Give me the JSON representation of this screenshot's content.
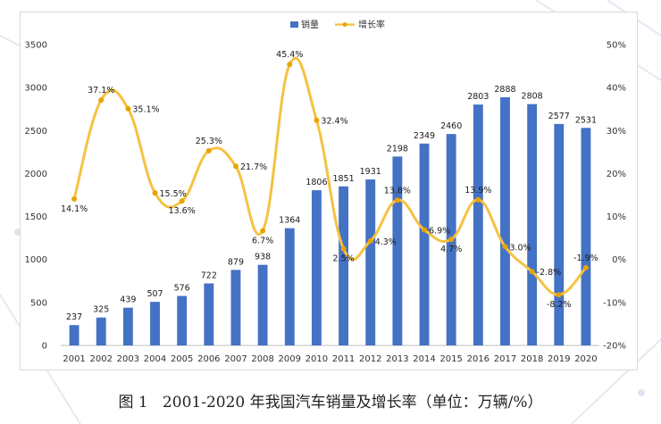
{
  "chart_data": {
    "type": "bar",
    "categories": [
      "2001",
      "2002",
      "2003",
      "2004",
      "2005",
      "2006",
      "2007",
      "2008",
      "2009",
      "2010",
      "2011",
      "2012",
      "2013",
      "2014",
      "2015",
      "2016",
      "2017",
      "2018",
      "2019",
      "2020"
    ],
    "series": [
      {
        "name": "销量",
        "type": "bar",
        "axis": "left",
        "values": [
          237,
          325,
          439,
          507,
          576,
          722,
          879,
          938,
          1364,
          1806,
          1851,
          1931,
          2198,
          2349,
          2460,
          2803,
          2888,
          2808,
          2577,
          2531
        ],
        "labels": [
          "237",
          "325",
          "439",
          "507",
          "576",
          "722",
          "879",
          "938",
          "1364",
          "1806",
          "1851",
          "1931",
          "2198",
          "2349",
          "2460",
          "2803",
          "2888",
          "2808",
          "2577",
          "2531"
        ]
      },
      {
        "name": "增长率",
        "type": "line",
        "axis": "right",
        "values": [
          14.1,
          37.1,
          35.1,
          15.5,
          13.6,
          25.3,
          21.7,
          6.7,
          45.4,
          32.4,
          2.5,
          4.3,
          13.8,
          6.9,
          4.7,
          13.9,
          3.0,
          -2.8,
          -8.2,
          -1.9
        ],
        "labels": [
          "14.1%",
          "37.1%",
          "35.1%",
          "15.5%",
          "13.6%",
          "25.3%",
          "21.7%",
          "6.7%",
          "45.4%",
          "32.4%",
          "2.5%",
          "4.3%",
          "13.8%",
          "6.9%",
          "4.7%",
          "13.9%",
          "3.0%",
          "-2.8%",
          "-8.2%",
          "-1.9%"
        ]
      }
    ],
    "y_left": {
      "ylim": [
        0,
        3500
      ],
      "ticks": [
        "0",
        "500",
        "1000",
        "1500",
        "2000",
        "2500",
        "3000",
        "3500"
      ]
    },
    "y_right": {
      "ylim": [
        -20,
        50
      ],
      "ticks": [
        "-20%",
        "-10%",
        "0%",
        "10%",
        "20%",
        "30%",
        "40%",
        "50%"
      ]
    },
    "legend": {
      "position": "top-center",
      "items": [
        "销量",
        "增长率"
      ]
    },
    "grid": false
  },
  "colors": {
    "bar": "#4472c4",
    "line": "#f5c242",
    "marker": "#e8a400"
  },
  "caption": "图 1   2001-2020 年我国汽车销量及增长率（单位：万辆/%）"
}
